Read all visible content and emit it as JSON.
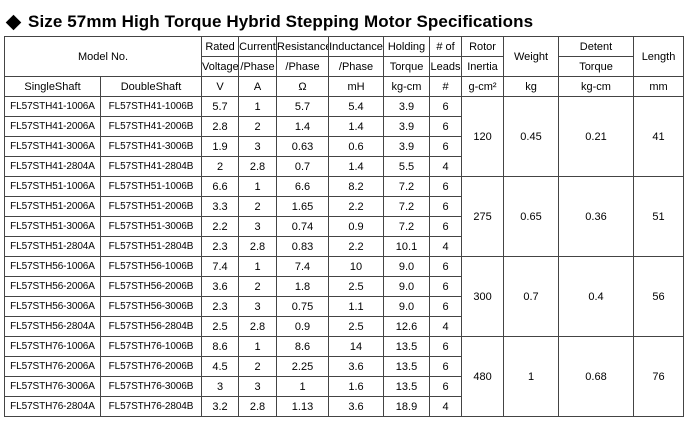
{
  "title": "Size 57mm High Torque Hybrid Stepping Motor Specifications",
  "header": {
    "model_no": "Model No.",
    "rated_voltage": [
      "Rated",
      "Voltage"
    ],
    "current_phase": [
      "Current",
      "/Phase"
    ],
    "resistance_phase": [
      "Resistance",
      "/Phase"
    ],
    "inductance_phase": [
      "Inductance",
      "/Phase"
    ],
    "holding_torque": [
      "Holding",
      "Torque"
    ],
    "num_leads": [
      "# of",
      "Leads"
    ],
    "rotor_inertia": [
      "Rotor",
      "Inertia"
    ],
    "weight": "Weight",
    "detent_torque": [
      "Detent",
      "Torque"
    ],
    "length": "Length"
  },
  "subheader": {
    "single_shaft": "SingleShaft",
    "double_shaft": "DoubleShaft"
  },
  "units": {
    "voltage": "V",
    "current": "A",
    "resistance": "Ω",
    "inductance": "mH",
    "torque": "kg-cm",
    "leads": "#",
    "inertia": "g-cm²",
    "weight": "kg",
    "detent": "kg-cm",
    "length": "mm"
  },
  "groups": [
    {
      "inertia": "120",
      "weight": "0.45",
      "detent": "0.21",
      "length": "41",
      "rows": [
        {
          "single": "FL57STH41-1006A",
          "double": "FL57STH41-1006B",
          "voltage": "5.7",
          "current": "1",
          "resistance": "5.7",
          "inductance": "5.4",
          "torque": "3.9",
          "leads": "6"
        },
        {
          "single": "FL57STH41-2006A",
          "double": "FL57STH41-2006B",
          "voltage": "2.8",
          "current": "2",
          "resistance": "1.4",
          "inductance": "1.4",
          "torque": "3.9",
          "leads": "6"
        },
        {
          "single": "FL57STH41-3006A",
          "double": "FL57STH41-3006B",
          "voltage": "1.9",
          "current": "3",
          "resistance": "0.63",
          "inductance": "0.6",
          "torque": "3.9",
          "leads": "6"
        },
        {
          "single": "FL57STH41-2804A",
          "double": "FL57STH41-2804B",
          "voltage": "2",
          "current": "2.8",
          "resistance": "0.7",
          "inductance": "1.4",
          "torque": "5.5",
          "leads": "4"
        }
      ]
    },
    {
      "inertia": "275",
      "weight": "0.65",
      "detent": "0.36",
      "length": "51",
      "rows": [
        {
          "single": "FL57STH51-1006A",
          "double": "FL57STH51-1006B",
          "voltage": "6.6",
          "current": "1",
          "resistance": "6.6",
          "inductance": "8.2",
          "torque": "7.2",
          "leads": "6"
        },
        {
          "single": "FL57STH51-2006A",
          "double": "FL57STH51-2006B",
          "voltage": "3.3",
          "current": "2",
          "resistance": "1.65",
          "inductance": "2.2",
          "torque": "7.2",
          "leads": "6"
        },
        {
          "single": "FL57STH51-3006A",
          "double": "FL57STH51-3006B",
          "voltage": "2.2",
          "current": "3",
          "resistance": "0.74",
          "inductance": "0.9",
          "torque": "7.2",
          "leads": "6"
        },
        {
          "single": "FL57STH51-2804A",
          "double": "FL57STH51-2804B",
          "voltage": "2.3",
          "current": "2.8",
          "resistance": "0.83",
          "inductance": "2.2",
          "torque": "10.1",
          "leads": "4"
        }
      ]
    },
    {
      "inertia": "300",
      "weight": "0.7",
      "detent": "0.4",
      "length": "56",
      "rows": [
        {
          "single": "FL57STH56-1006A",
          "double": "FL57STH56-1006B",
          "voltage": "7.4",
          "current": "1",
          "resistance": "7.4",
          "inductance": "10",
          "torque": "9.0",
          "leads": "6"
        },
        {
          "single": "FL57STH56-2006A",
          "double": "FL57STH56-2006B",
          "voltage": "3.6",
          "current": "2",
          "resistance": "1.8",
          "inductance": "2.5",
          "torque": "9.0",
          "leads": "6"
        },
        {
          "single": "FL57STH56-3006A",
          "double": "FL57STH56-3006B",
          "voltage": "2.3",
          "current": "3",
          "resistance": "0.75",
          "inductance": "1.1",
          "torque": "9.0",
          "leads": "6"
        },
        {
          "single": "FL57STH56-2804A",
          "double": "FL57STH56-2804B",
          "voltage": "2.5",
          "current": "2.8",
          "resistance": "0.9",
          "inductance": "2.5",
          "torque": "12.6",
          "leads": "4"
        }
      ]
    },
    {
      "inertia": "480",
      "weight": "1",
      "detent": "0.68",
      "length": "76",
      "rows": [
        {
          "single": "FL57STH76-1006A",
          "double": "FL57STH76-1006B",
          "voltage": "8.6",
          "current": "1",
          "resistance": "8.6",
          "inductance": "14",
          "torque": "13.5",
          "leads": "6"
        },
        {
          "single": "FL57STH76-2006A",
          "double": "FL57STH76-2006B",
          "voltage": "4.5",
          "current": "2",
          "resistance": "2.25",
          "inductance": "3.6",
          "torque": "13.5",
          "leads": "6"
        },
        {
          "single": "FL57STH76-3006A",
          "double": "FL57STH76-3006B",
          "voltage": "3",
          "current": "3",
          "resistance": "1",
          "inductance": "1.6",
          "torque": "13.5",
          "leads": "6"
        },
        {
          "single": "FL57STH76-2804A",
          "double": "FL57STH76-2804B",
          "voltage": "3.2",
          "current": "2.8",
          "resistance": "1.13",
          "inductance": "3.6",
          "torque": "18.9",
          "leads": "4"
        }
      ]
    }
  ]
}
